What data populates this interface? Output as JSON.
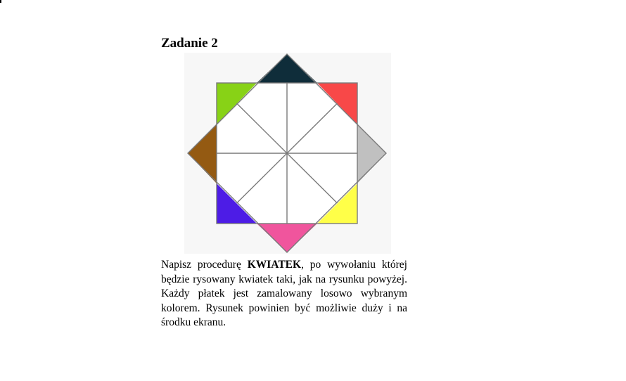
{
  "title": "Zadanie 2",
  "text": {
    "before": "Napisz procedurę ",
    "keyword": "KWIATEK",
    "after": ", po wywołaniu której będzie rysowany kwiatek taki, jak na rysunku powyżej. Każdy płatek jest zamalowany losowo wybranym kolorem. Rysunek powinien być możliwie duży i na środku ekranu."
  },
  "figure": {
    "colors": {
      "top": "#0f2d3a",
      "top_right": "#f84848",
      "right": "#c0c0c0",
      "bottom_right": "#ffff48",
      "bottom": "#f0559d",
      "bottom_left": "#4d1ce6",
      "left": "#945a12",
      "top_left": "#88d216",
      "lines": "#7a7a7a",
      "fill": "#ffffff"
    }
  }
}
